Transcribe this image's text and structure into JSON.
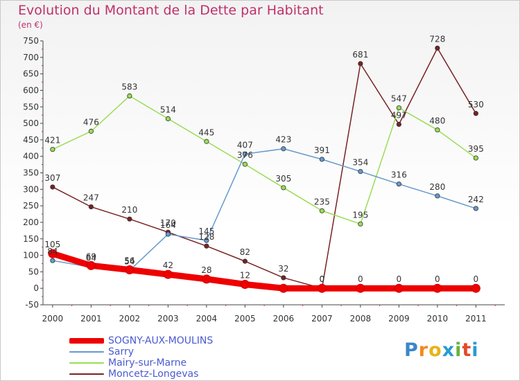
{
  "title": "Evolution du Montant de la Dette par Habitant",
  "subtitle": "(en €)",
  "logo": "Proxiti",
  "chart_data": {
    "type": "line",
    "title": "Evolution du Montant de la Dette par Habitant",
    "ylabel": "(en €)",
    "ylim": [
      -50,
      750
    ],
    "yticks": [
      -50,
      0,
      50,
      100,
      150,
      200,
      250,
      300,
      350,
      400,
      450,
      500,
      550,
      600,
      650,
      700,
      750
    ],
    "x": [
      "2000",
      "2001",
      "2002",
      "2003",
      "2004",
      "2005",
      "2006",
      "2007",
      "2008",
      "2009",
      "2010",
      "2011"
    ],
    "grid": false,
    "legend": "bottom-left",
    "series": [
      {
        "name": "SOGNY-AUX-MOULINS",
        "color": "#ee0000",
        "values": [
          105,
          69,
          56,
          42,
          28,
          12,
          0,
          0,
          0,
          0,
          0,
          0
        ]
      },
      {
        "name": "Sarry",
        "color": "#6699cc",
        "values": [
          84,
          64,
          54,
          164,
          145,
          407,
          423,
          391,
          354,
          316,
          280,
          242
        ]
      },
      {
        "name": "Mairy-sur-Marne",
        "color": "#99dd55",
        "values": [
          421,
          476,
          583,
          514,
          445,
          376,
          305,
          235,
          195,
          547,
          480,
          395
        ]
      },
      {
        "name": "Moncetz-Longevas",
        "color": "#772222",
        "values": [
          307,
          247,
          210,
          170,
          128,
          82,
          32,
          0,
          681,
          497,
          728,
          530
        ]
      }
    ],
    "labels": [
      {
        "text": "105",
        "x": "2000",
        "y": 105
      },
      {
        "text": "84",
        "x": "2000",
        "y": 84
      },
      {
        "text": "69",
        "x": "2001",
        "y": 69
      },
      {
        "text": "64",
        "x": "2001",
        "y": 64
      },
      {
        "text": "56",
        "x": "2002",
        "y": 56
      },
      {
        "text": "54",
        "x": "2002",
        "y": 54
      },
      {
        "text": "42",
        "x": "2003",
        "y": 42
      },
      {
        "text": "28",
        "x": "2004",
        "y": 28
      },
      {
        "text": "12",
        "x": "2005",
        "y": 12
      },
      {
        "text": "0",
        "x": "2007",
        "y": 0
      },
      {
        "text": "0",
        "x": "2008",
        "y": 0
      },
      {
        "text": "0",
        "x": "2009",
        "y": 0
      },
      {
        "text": "0",
        "x": "2010",
        "y": 0
      },
      {
        "text": "0",
        "x": "2011",
        "y": 0
      },
      {
        "text": "164",
        "x": "2003",
        "y": 164
      },
      {
        "text": "145",
        "x": "2004",
        "y": 145
      },
      {
        "text": "407",
        "x": "2005",
        "y": 407
      },
      {
        "text": "423",
        "x": "2006",
        "y": 423
      },
      {
        "text": "391",
        "x": "2007",
        "y": 391
      },
      {
        "text": "354",
        "x": "2008",
        "y": 354
      },
      {
        "text": "316",
        "x": "2009",
        "y": 316
      },
      {
        "text": "280",
        "x": "2010",
        "y": 280
      },
      {
        "text": "242",
        "x": "2011",
        "y": 242
      },
      {
        "text": "421",
        "x": "2000",
        "y": 421
      },
      {
        "text": "476",
        "x": "2001",
        "y": 476
      },
      {
        "text": "583",
        "x": "2002",
        "y": 583
      },
      {
        "text": "514",
        "x": "2003",
        "y": 514
      },
      {
        "text": "445",
        "x": "2004",
        "y": 445
      },
      {
        "text": "376",
        "x": "2005",
        "y": 376
      },
      {
        "text": "305",
        "x": "2006",
        "y": 305
      },
      {
        "text": "235",
        "x": "2007",
        "y": 235
      },
      {
        "text": "195",
        "x": "2008",
        "y": 195
      },
      {
        "text": "547",
        "x": "2009",
        "y": 547
      },
      {
        "text": "480",
        "x": "2010",
        "y": 480
      },
      {
        "text": "395",
        "x": "2011",
        "y": 395
      },
      {
        "text": "307",
        "x": "2000",
        "y": 307
      },
      {
        "text": "247",
        "x": "2001",
        "y": 247
      },
      {
        "text": "210",
        "x": "2002",
        "y": 210
      },
      {
        "text": "170",
        "x": "2003",
        "y": 170
      },
      {
        "text": "128",
        "x": "2004",
        "y": 128
      },
      {
        "text": "82",
        "x": "2005",
        "y": 82
      },
      {
        "text": "32",
        "x": "2006",
        "y": 32
      },
      {
        "text": "0",
        "x": "2007",
        "y": 0
      },
      {
        "text": "681",
        "x": "2008",
        "y": 681
      },
      {
        "text": "497",
        "x": "2009",
        "y": 497
      },
      {
        "text": "728",
        "x": "2010",
        "y": 728
      },
      {
        "text": "530",
        "x": "2011",
        "y": 530
      }
    ]
  }
}
